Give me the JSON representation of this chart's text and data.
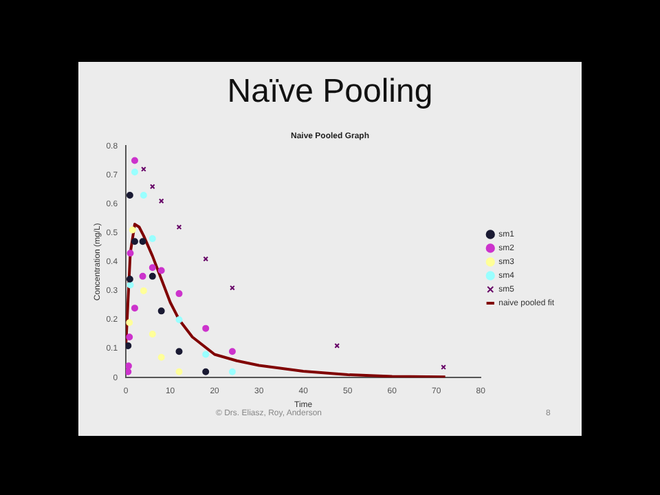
{
  "chart_data": {
    "type": "scatter",
    "title": "Naïve Pooling",
    "subtitle": "Naive Pooled Graph",
    "xlabel": "Time",
    "ylabel": "Concentration (mg/L)",
    "xlim": [
      0,
      80
    ],
    "ylim": [
      0,
      0.8
    ],
    "xticks": [
      0,
      10,
      20,
      30,
      40,
      50,
      60,
      70,
      80
    ],
    "yticks": [
      0,
      0.1,
      0.2,
      0.3,
      0.4,
      0.5,
      0.6,
      0.7,
      0.8
    ],
    "grid": false,
    "legend": "right",
    "series": [
      {
        "name": "sm1",
        "color": "#1a1a33",
        "marker": "circle",
        "x": [
          0.5,
          0.9,
          0.9,
          2,
          3.8,
          6,
          8,
          12,
          18
        ],
        "values": [
          0.11,
          0.34,
          0.63,
          0.47,
          0.47,
          0.35,
          0.23,
          0.09,
          0.02
        ]
      },
      {
        "name": "sm2",
        "color": "#cc33cc",
        "marker": "circle",
        "x": [
          0.5,
          0.6,
          0.8,
          1,
          2,
          2,
          3.8,
          6,
          8,
          12,
          18,
          24
        ],
        "values": [
          0.02,
          0.04,
          0.14,
          0.43,
          0.24,
          0.75,
          0.35,
          0.38,
          0.37,
          0.29,
          0.17,
          0.09
        ]
      },
      {
        "name": "sm3",
        "color": "#ffff99",
        "marker": "circle",
        "x": [
          0.8,
          1.5,
          4,
          6,
          8,
          12
        ],
        "values": [
          0.19,
          0.51,
          0.3,
          0.15,
          0.07,
          0.02
        ]
      },
      {
        "name": "sm4",
        "color": "#99ffff",
        "marker": "circle",
        "x": [
          1,
          2,
          4,
          6,
          12,
          18,
          24
        ],
        "values": [
          0.32,
          0.71,
          0.63,
          0.48,
          0.2,
          0.08,
          0.02
        ]
      },
      {
        "name": "sm5",
        "color": "#660066",
        "marker": "cross",
        "x": [
          4,
          6,
          8,
          12,
          18,
          24,
          47.6,
          71.6
        ],
        "values": [
          0.72,
          0.66,
          0.61,
          0.52,
          0.41,
          0.31,
          0.11,
          0.036
        ]
      },
      {
        "name": "naive pooled fit",
        "type": "line",
        "color": "#800000",
        "marker": "none",
        "x": [
          0,
          1,
          2,
          3,
          4,
          6,
          8,
          10,
          12,
          15,
          20,
          25,
          30,
          40,
          50,
          60,
          72
        ],
        "values": [
          0.11,
          0.43,
          0.53,
          0.52,
          0.49,
          0.42,
          0.34,
          0.26,
          0.2,
          0.14,
          0.08,
          0.058,
          0.042,
          0.022,
          0.01,
          0.004,
          0.002
        ]
      }
    ],
    "annotations": [
      "© Drs. Eliasz, Roy, Anderson",
      "8"
    ]
  }
}
